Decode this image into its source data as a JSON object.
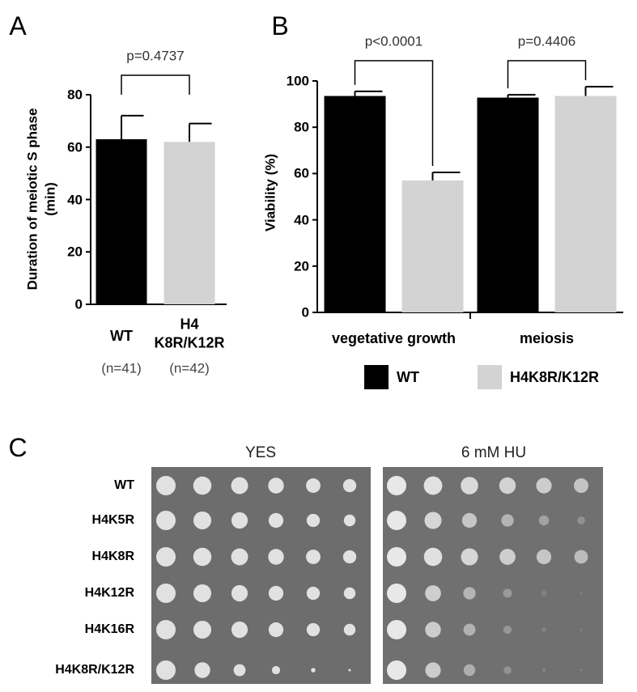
{
  "chart_data": [
    {
      "type": "bar",
      "panel_label": "A",
      "ylabel": [
        "Duration of meiotic S phase",
        "(min)"
      ],
      "categories": [
        "WT",
        "H4\nK8R/K12R"
      ],
      "category_notes": [
        "(n=41)",
        "(n=42)"
      ],
      "values": [
        63,
        62
      ],
      "errors": [
        9,
        7
      ],
      "colors": [
        "#000000",
        "#d3d3d3"
      ],
      "annotations": [
        "p=0.4737"
      ],
      "ylim": [
        0,
        80
      ],
      "yticks": [
        0,
        20,
        40,
        60,
        80
      ],
      "grid": false
    },
    {
      "type": "bar",
      "panel_label": "B",
      "ylabel": [
        "Viability (%)"
      ],
      "categories": [
        "vegetative growth",
        "meiosis"
      ],
      "series": [
        {
          "name": "WT",
          "color": "#000000",
          "values": [
            93.5,
            92.8
          ],
          "errors": [
            2,
            1.2
          ]
        },
        {
          "name": "H4K8R/K12R",
          "color": "#d3d3d3",
          "values": [
            57,
            93.5
          ],
          "errors": [
            3.5,
            4
          ]
        }
      ],
      "annotations": [
        "p<0.0001",
        "p=0.4406"
      ],
      "ylim": [
        0,
        100
      ],
      "yticks": [
        0,
        20,
        40,
        60,
        80,
        100
      ],
      "grid": false,
      "legend": "bottom"
    }
  ],
  "panel_c": {
    "panel_label": "C",
    "conditions": [
      "YES",
      "6 mM HU"
    ],
    "strains": [
      "WT",
      "H4K5R",
      "H4K8R",
      "H4K12R",
      "H4K16R",
      "H4K8R/K12R"
    ]
  }
}
